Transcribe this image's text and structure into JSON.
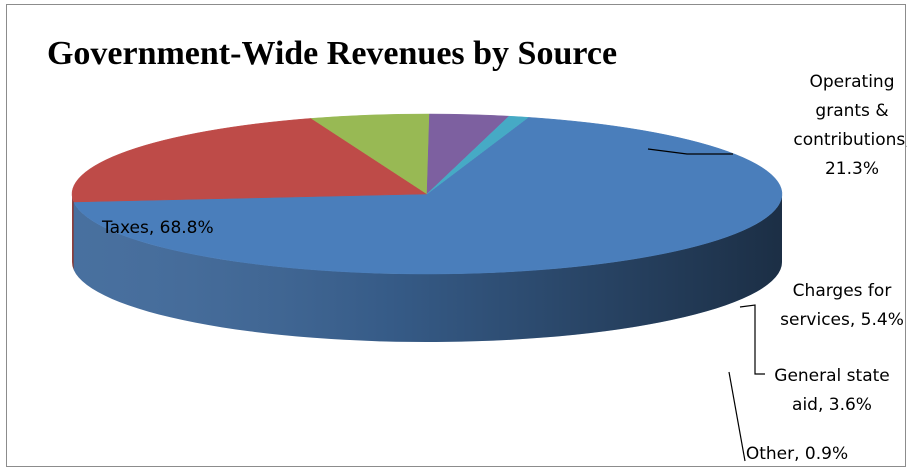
{
  "chart_data": {
    "type": "pie",
    "style": "3d",
    "title": "Government-Wide Revenues by Source",
    "slices": [
      {
        "name": "Taxes",
        "value": 68.8,
        "label_lines": [
          "Taxes, 68.8%"
        ],
        "color": "#4a7ebb"
      },
      {
        "name": "Operating grants & contributions",
        "value": 21.3,
        "label_lines": [
          "Operating",
          "grants &",
          "contributions,",
          "21.3%"
        ],
        "color": "#be4b48"
      },
      {
        "name": "Charges for services",
        "value": 5.4,
        "label_lines": [
          "Charges for",
          "services, 5.4%"
        ],
        "color": "#98b954"
      },
      {
        "name": "General state aid",
        "value": 3.6,
        "label_lines": [
          "General state",
          "aid, 3.6%"
        ],
        "color": "#7d60a0"
      },
      {
        "name": "Other",
        "value": 0.9,
        "label_lines": [
          "Other, 0.9%"
        ],
        "color": "#46aac5"
      }
    ]
  }
}
